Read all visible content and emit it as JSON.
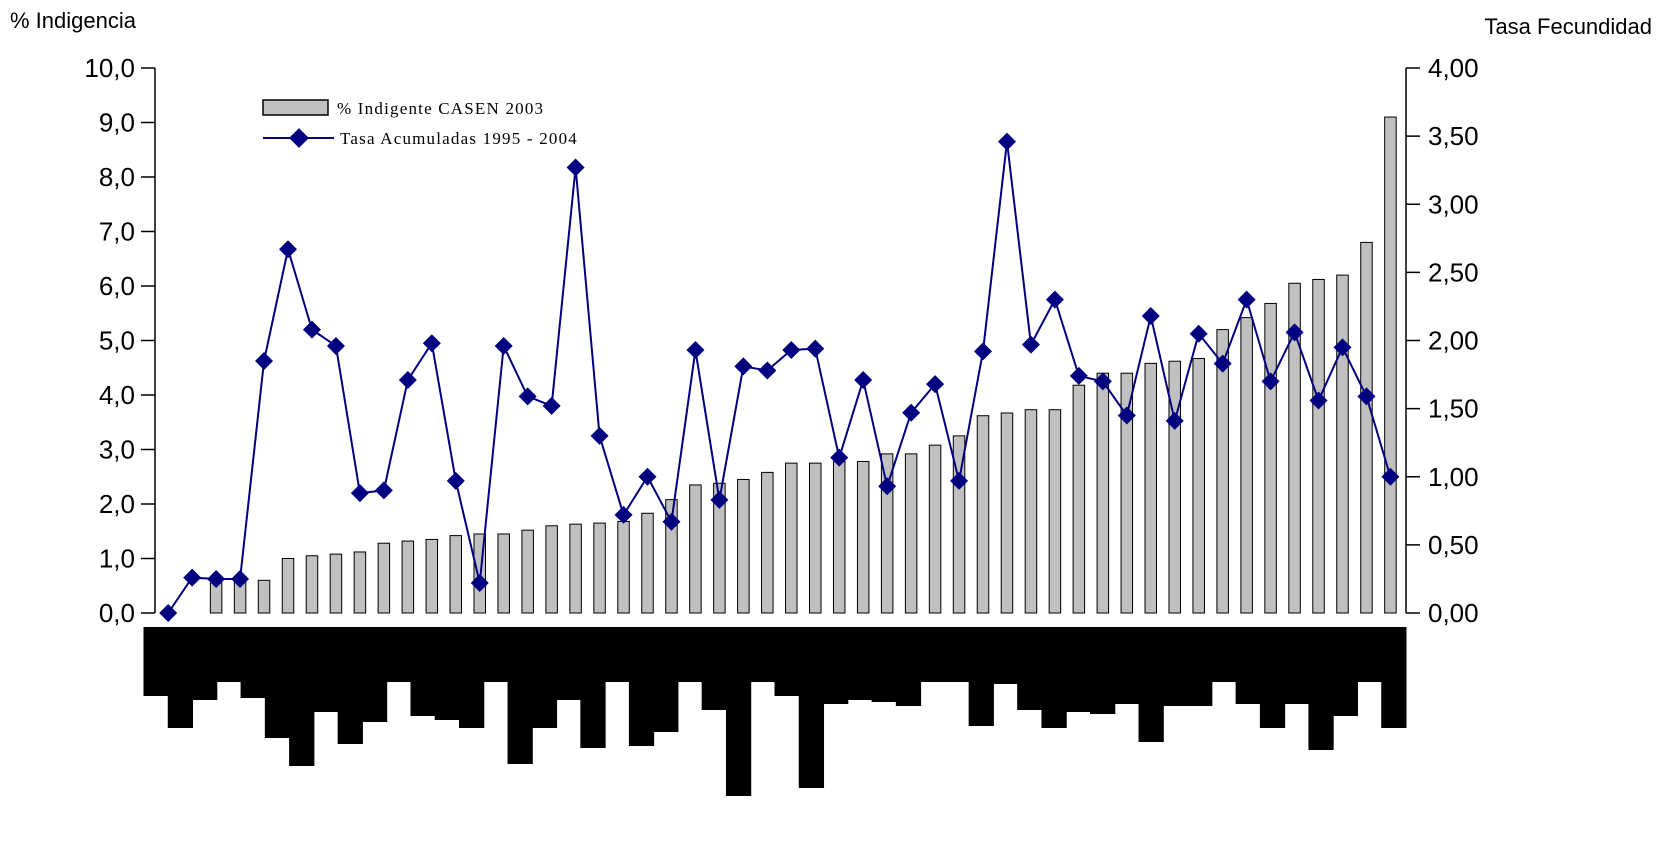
{
  "chart_data": {
    "type": "bar",
    "y_left_title": "% Indigencia",
    "y_right_title": "Tasa Fecundidad",
    "y_left_ticks": [
      "0,0",
      "1,0",
      "2,0",
      "3,0",
      "4,0",
      "5,0",
      "6,0",
      "7,0",
      "8,0",
      "9,0",
      "10,0"
    ],
    "y_right_ticks": [
      "0,00",
      "0,50",
      "1,00",
      "1,50",
      "2,00",
      "2,50",
      "3,00",
      "3,50",
      "4,00"
    ],
    "ylim_left": [
      0,
      10
    ],
    "ylim_right": [
      0,
      4
    ],
    "legend_position": "top-left",
    "series": [
      {
        "name": "% Indigente CASEN 2003",
        "type": "bar",
        "axis": "left",
        "color": "#c0c0c0",
        "values": [
          0,
          0,
          0.55,
          0.6,
          0.6,
          1.0,
          1.05,
          1.08,
          1.12,
          1.28,
          1.32,
          1.35,
          1.42,
          1.45,
          1.45,
          1.52,
          1.6,
          1.63,
          1.65,
          1.68,
          1.83,
          2.08,
          2.35,
          2.38,
          2.45,
          2.58,
          2.75,
          2.75,
          2.78,
          2.78,
          2.92,
          2.92,
          3.08,
          3.25,
          3.62,
          3.67,
          3.73,
          3.73,
          4.18,
          4.4,
          4.4,
          4.58,
          4.62,
          4.67,
          5.2,
          5.42,
          5.68,
          6.05,
          6.12,
          6.2,
          6.8,
          9.1
        ]
      },
      {
        "name": "Tasa Acumuladas 1995 - 2004",
        "type": "line",
        "axis": "right",
        "color": "#000080",
        "values": [
          0.0,
          0.26,
          0.25,
          0.25,
          1.85,
          2.67,
          2.08,
          1.96,
          0.88,
          0.9,
          1.71,
          1.98,
          0.97,
          0.22,
          1.96,
          1.59,
          1.52,
          3.27,
          1.3,
          0.72,
          1.0,
          0.67,
          1.93,
          0.83,
          1.81,
          1.78,
          1.93,
          1.94,
          1.14,
          1.71,
          0.93,
          1.47,
          1.68,
          0.97,
          1.92,
          3.46,
          1.97,
          2.3,
          1.74,
          1.7,
          1.45,
          2.18,
          1.41,
          2.05,
          1.83,
          2.3,
          1.7,
          2.06,
          1.56,
          1.95,
          1.59,
          1.0
        ]
      }
    ],
    "grid": false
  }
}
